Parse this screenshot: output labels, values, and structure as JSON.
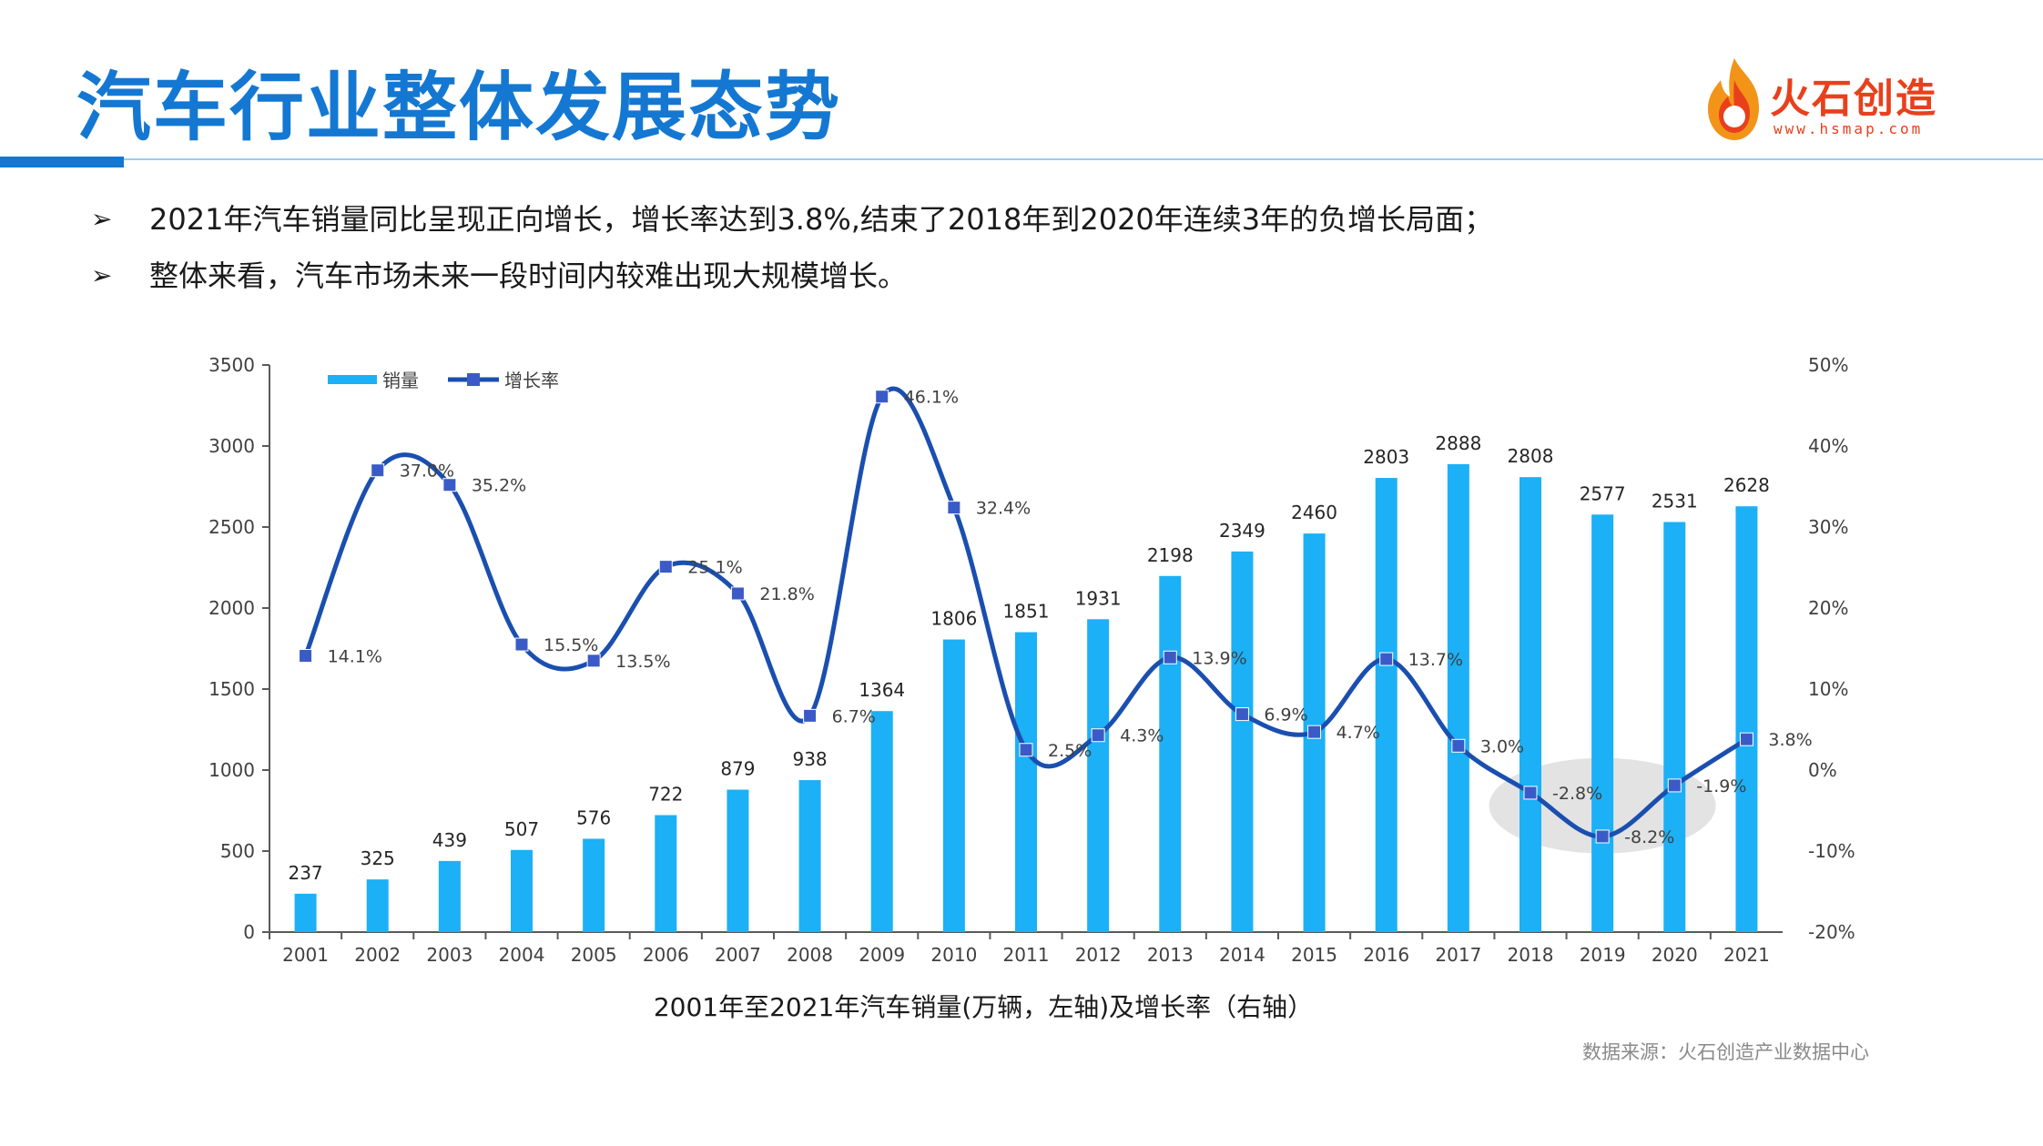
{
  "header": {
    "title": "汽车行业整体发展态势"
  },
  "logo": {
    "name": "火石创造",
    "url": "www.hsmap.com"
  },
  "bullets": [
    {
      "marker": "➢",
      "text": "2021年汽车销量同比呈现正向增长，增长率达到3.8%,结束了2018年到2020年连续3年的负增长局面；"
    },
    {
      "marker": "➢",
      "text": "整体来看，汽车市场未来一段时间内较难出现大规模增长。"
    }
  ],
  "source": "数据来源：火石创造产业数据中心",
  "colors": {
    "title": "#1478d2",
    "bar": "#1cb0f6",
    "line": "#1a4fb0",
    "marker": "#3a5bc7",
    "highlight": "#d9d9d9"
  },
  "chart_data": {
    "type": "bar",
    "title": "2001年至2021年汽车销量(万辆，左轴)及增长率（右轴）",
    "categories": [
      "2001",
      "2002",
      "2003",
      "2004",
      "2005",
      "2006",
      "2007",
      "2008",
      "2009",
      "2010",
      "2011",
      "2012",
      "2013",
      "2014",
      "2015",
      "2016",
      "2017",
      "2018",
      "2019",
      "2020",
      "2021"
    ],
    "series": [
      {
        "name": "销量",
        "type": "bar",
        "axis": "left",
        "values": [
          237,
          325,
          439,
          507,
          576,
          722,
          879,
          938,
          1364,
          1806,
          1851,
          1931,
          2198,
          2349,
          2460,
          2803,
          2888,
          2808,
          2577,
          2531,
          2628
        ]
      },
      {
        "name": "增长率",
        "type": "line",
        "axis": "right",
        "smooth": true,
        "values": [
          14.1,
          37.0,
          35.2,
          15.5,
          13.5,
          25.1,
          21.8,
          6.7,
          46.1,
          32.4,
          2.5,
          4.3,
          13.9,
          6.9,
          4.7,
          13.7,
          3.0,
          -2.8,
          -8.2,
          -1.9,
          3.8
        ],
        "labels": [
          "14.1%",
          "37.0%",
          "35.2%",
          "15.5%",
          "13.5%",
          "25.1%",
          "21.8%",
          "6.7%",
          "46.1%",
          "32.4%",
          "2.5%",
          "4.3%",
          "13.9%",
          "6.9%",
          "4.7%",
          "13.7%",
          "3.0%",
          "-2.8%",
          "-8.2%",
          "-1.9%",
          "3.8%"
        ]
      }
    ],
    "left_axis": {
      "ylim": [
        0,
        3500
      ],
      "ticks": [
        "0",
        "500",
        "1000",
        "1500",
        "2000",
        "2500",
        "3000",
        "3500"
      ]
    },
    "right_axis": {
      "ylim": [
        -20,
        50
      ],
      "ticks": [
        "-20%",
        "-10%",
        "0%",
        "10%",
        "20%",
        "30%",
        "40%",
        "50%"
      ]
    },
    "legend": {
      "placement": "top-left",
      "entries": [
        "销量",
        "增长率"
      ]
    },
    "grid": false,
    "annotations": [
      {
        "type": "highlight-ellipse",
        "covers": [
          "2018",
          "2019",
          "2020"
        ]
      }
    ]
  }
}
